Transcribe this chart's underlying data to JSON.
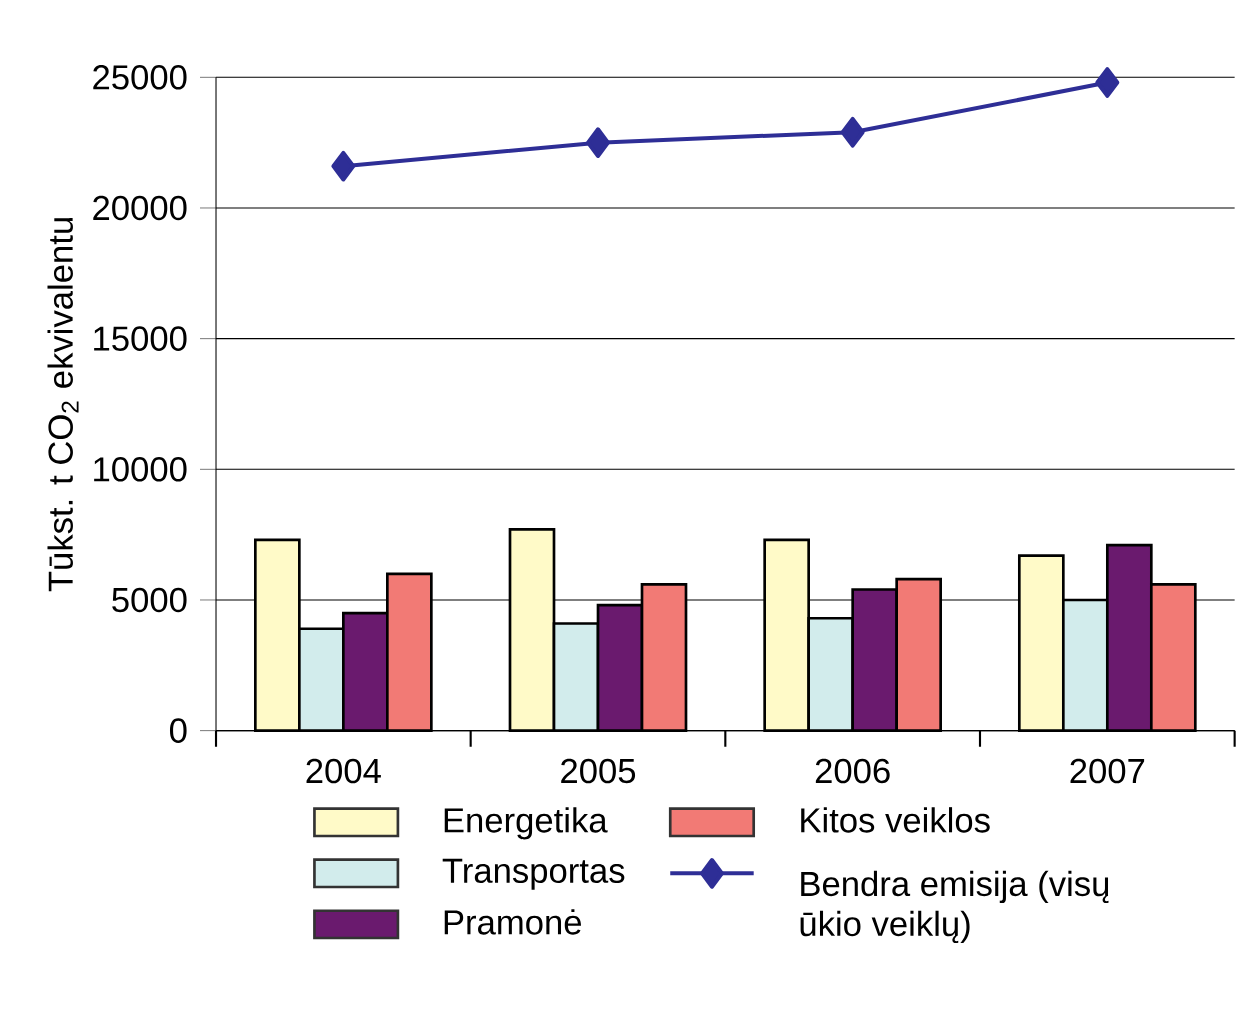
{
  "chart_data": {
    "type": "bar",
    "ylabel": "Tūkst. t CO$_{2}$ ekvivalentu",
    "categories": [
      "2004",
      "2005",
      "2006",
      "2007"
    ],
    "series": [
      {
        "name": "Energetika",
        "color": "#fffac8",
        "values": [
          7300,
          7700,
          7300,
          6700
        ]
      },
      {
        "name": "Transportas",
        "color": "#d2ecec",
        "values": [
          3900,
          4100,
          4300,
          5000
        ]
      },
      {
        "name": "Pramonė",
        "color": "#6a1a6e",
        "values": [
          4500,
          4800,
          5400,
          7100
        ]
      },
      {
        "name": "Kitos veiklos",
        "color": "#f27a75",
        "values": [
          6000,
          5600,
          5800,
          5600
        ]
      },
      {
        "name": "Bendra emisija (visų ūkio veiklų)",
        "type": "line",
        "color": "#2e2e96",
        "marker": "diamond",
        "values": [
          21600,
          22500,
          22900,
          24800
        ]
      }
    ],
    "ylim": [
      0,
      25000
    ],
    "yticks": [
      0,
      5000,
      10000,
      15000,
      20000,
      25000
    ],
    "grid": "y",
    "legend": "bottom"
  }
}
